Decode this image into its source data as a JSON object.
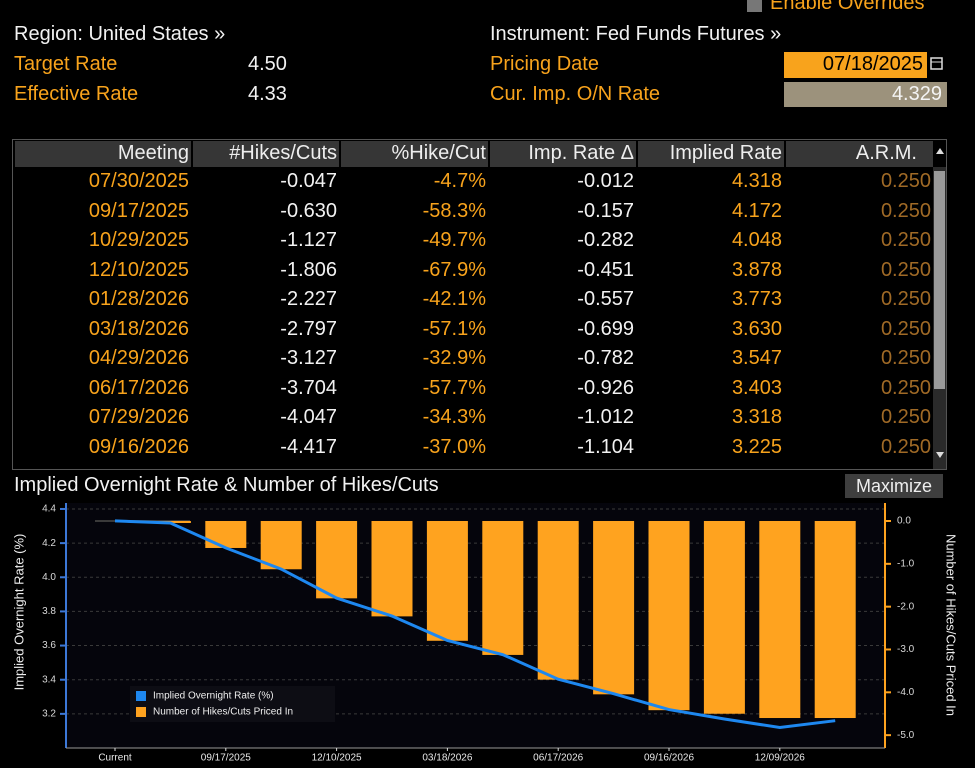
{
  "header": {
    "overrides": "Enable Overrides",
    "region": "Region: United States »",
    "instrument": "Instrument: Fed Funds Futures »",
    "fields": [
      {
        "label": "Target Rate",
        "value": "4.50"
      },
      {
        "label": "Effective Rate",
        "value": "4.33"
      },
      {
        "label": "Pricing Date",
        "value": "07/18/2025"
      },
      {
        "label": "Cur. Imp. O/N Rate",
        "value": "4.329"
      }
    ]
  },
  "table": {
    "columns": [
      "Meeting",
      "#Hikes/Cuts",
      "%Hike/Cut",
      "Imp. Rate Δ",
      "Implied Rate",
      "A.R.M."
    ],
    "rows": [
      [
        "07/30/2025",
        "-0.047",
        "-4.7%",
        "-0.012",
        "4.318",
        "0.250"
      ],
      [
        "09/17/2025",
        "-0.630",
        "-58.3%",
        "-0.157",
        "4.172",
        "0.250"
      ],
      [
        "10/29/2025",
        "-1.127",
        "-49.7%",
        "-0.282",
        "4.048",
        "0.250"
      ],
      [
        "12/10/2025",
        "-1.806",
        "-67.9%",
        "-0.451",
        "3.878",
        "0.250"
      ],
      [
        "01/28/2026",
        "-2.227",
        "-42.1%",
        "-0.557",
        "3.773",
        "0.250"
      ],
      [
        "03/18/2026",
        "-2.797",
        "-57.1%",
        "-0.699",
        "3.630",
        "0.250"
      ],
      [
        "04/29/2026",
        "-3.127",
        "-32.9%",
        "-0.782",
        "3.547",
        "0.250"
      ],
      [
        "06/17/2026",
        "-3.704",
        "-57.7%",
        "-0.926",
        "3.403",
        "0.250"
      ],
      [
        "07/29/2026",
        "-4.047",
        "-34.3%",
        "-1.012",
        "3.318",
        "0.250"
      ],
      [
        "09/16/2026",
        "-4.417",
        "-37.0%",
        "-1.104",
        "3.225",
        "0.250"
      ]
    ]
  },
  "panel": {
    "maximize": "Maximize"
  },
  "chart_data": {
    "type": "combo",
    "title": "Implied Overnight Rate & Number of Hikes/Cuts",
    "ylabel": "Implied Overnight Rate (%)",
    "y2label": "Number of Hikes/Cuts Priced In",
    "categories": [
      "Current",
      null,
      "09/17/2025",
      null,
      "12/10/2025",
      null,
      "03/18/2026",
      null,
      "06/17/2026",
      null,
      "09/16/2026",
      null,
      "12/09/2026",
      null
    ],
    "series": [
      {
        "name": "Number of Hikes/Cuts Priced In",
        "type": "bar",
        "axis": "y2",
        "color": "#ffa31f",
        "values": [
          null,
          -0.047,
          -0.63,
          -1.127,
          -1.806,
          -2.227,
          -2.797,
          -3.127,
          -3.704,
          -4.047,
          -4.417,
          -4.5,
          -4.6,
          -4.6
        ]
      },
      {
        "name": "Implied Overnight Rate (%)",
        "type": "line",
        "color": "#1e88f0",
        "values": [
          4.33,
          4.318,
          4.172,
          4.048,
          3.878,
          3.773,
          3.63,
          3.547,
          3.403,
          3.318,
          3.225,
          3.17,
          3.12,
          3.16
        ]
      }
    ],
    "ylim": [
      3.0,
      4.435
    ],
    "yticks": [
      3.2,
      3.4,
      3.6,
      3.8,
      {
        "value": 4,
        "label": "4.0"
      },
      4.2,
      4.4
    ],
    "y2lim": [
      -5.3,
      0.42
    ],
    "y2ticks": [
      {
        "value": 0,
        "label": "0.0"
      },
      {
        "value": -1,
        "label": "-1.0"
      },
      {
        "value": -2,
        "label": "-2.0"
      },
      {
        "value": -3,
        "label": "-3.0"
      },
      {
        "value": -4,
        "label": "-4.0"
      },
      {
        "value": -5,
        "label": "-5.0"
      }
    ],
    "grid": true
  }
}
